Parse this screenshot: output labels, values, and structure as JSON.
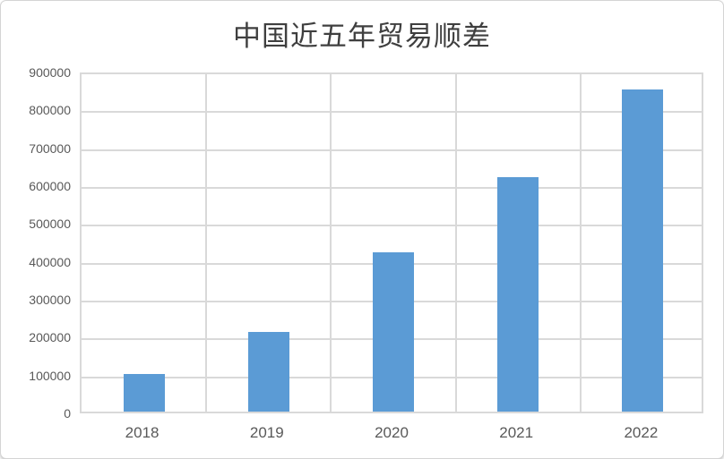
{
  "chart_data": {
    "type": "bar",
    "title": "中国近五年贸易顺差",
    "categories": [
      "2018",
      "2019",
      "2020",
      "2021",
      "2022"
    ],
    "values": [
      100000,
      210000,
      420000,
      620000,
      850000
    ],
    "xlabel": "",
    "ylabel": "",
    "y_axis": {
      "min": 0,
      "max": 900000,
      "step": 100000,
      "tick_labels": [
        "0",
        "100000",
        "200000",
        "300000",
        "400000",
        "500000",
        "600000",
        "700000",
        "800000",
        "900000"
      ]
    },
    "grid": "horizontal-and-vertical",
    "legend": "none",
    "colors": {
      "bar_fill": "#5B9BD5",
      "gridline": "#D9D9D9",
      "axis_label": "#595959",
      "title_text": "#3F3F3F",
      "background": "#FFFFFF"
    }
  }
}
